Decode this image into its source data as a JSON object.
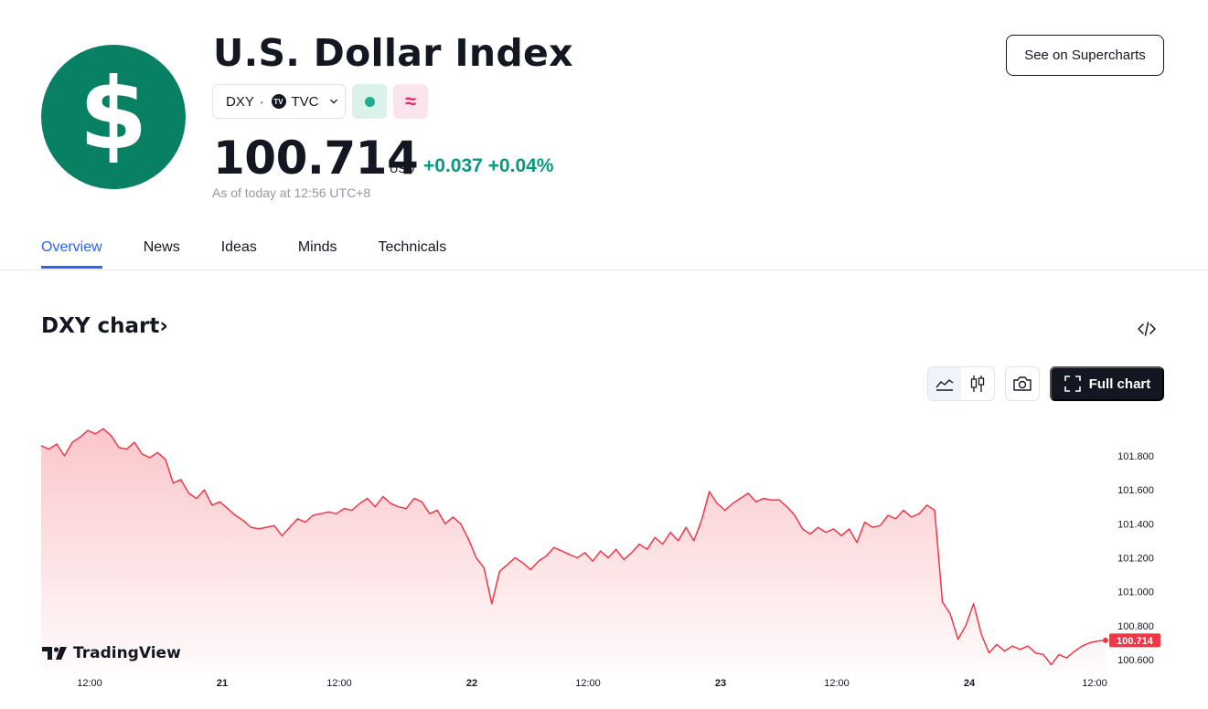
{
  "header": {
    "logo_symbol": "$",
    "title": "U.S. Dollar Index",
    "symbol": "DXY",
    "exchange_badge": "TV",
    "exchange": "TVC",
    "separator": "·",
    "price": "100.714",
    "currency": "USD",
    "change": "+0.037",
    "change_percent": "+0.04%",
    "as_of": "As of today at 12:56 UTC+8",
    "supercharts_label": "See on Supercharts",
    "market_status_icon": "market-open-dot-icon",
    "related_icon": "approx-equal-icon"
  },
  "tabs": [
    {
      "label": "Overview",
      "active": true
    },
    {
      "label": "News",
      "active": false
    },
    {
      "label": "Ideas",
      "active": false
    },
    {
      "label": "Minds",
      "active": false
    },
    {
      "label": "Technicals",
      "active": false
    }
  ],
  "chart_section": {
    "title": "DXY chart",
    "title_arrow": "›",
    "full_chart_label": "Full chart",
    "branding": "TradingView",
    "price_tag": "100.714"
  },
  "colors": {
    "brand_green": "#088064",
    "positive": "#089981",
    "line": "#f23645",
    "accent_blue": "#2962ff"
  },
  "chart_data": {
    "type": "area",
    "title": "",
    "xlabel": "",
    "ylabel": "",
    "x_ticks": [
      "12:00",
      "21",
      "12:00",
      "22",
      "12:00",
      "23",
      "12:00",
      "24",
      "12:00"
    ],
    "y_ticks": [
      "101.800",
      "101.600",
      "101.400",
      "101.200",
      "101.000",
      "100.800",
      "100.600"
    ],
    "ylim": [
      100.55,
      101.93
    ],
    "last_value": 100.714,
    "series": [
      {
        "values": [
          101.86,
          101.84,
          101.87,
          101.8,
          101.88,
          101.91,
          101.95,
          101.93,
          101.96,
          101.92,
          101.85,
          101.84,
          101.88,
          101.81,
          101.79,
          101.82,
          101.78,
          101.64,
          101.66,
          101.58,
          101.55,
          101.6,
          101.51,
          101.53,
          101.49,
          101.45,
          101.42,
          101.38,
          101.37,
          101.38,
          101.39,
          101.33,
          101.38,
          101.43,
          101.41,
          101.45,
          101.46,
          101.47,
          101.46,
          101.49,
          101.48,
          101.52,
          101.55,
          101.5,
          101.56,
          101.52,
          101.5,
          101.49,
          101.55,
          101.53,
          101.46,
          101.48,
          101.4,
          101.44,
          101.4,
          101.31,
          101.2,
          101.14,
          100.93,
          101.12,
          101.16,
          101.2,
          101.17,
          101.13,
          101.18,
          101.21,
          101.26,
          101.24,
          101.22,
          101.2,
          101.23,
          101.18,
          101.24,
          101.2,
          101.25,
          101.19,
          101.23,
          101.28,
          101.25,
          101.32,
          101.28,
          101.35,
          101.3,
          101.38,
          101.3,
          101.42,
          101.59,
          101.52,
          101.48,
          101.52,
          101.55,
          101.58,
          101.53,
          101.55,
          101.54,
          101.54,
          101.5,
          101.45,
          101.37,
          101.34,
          101.38,
          101.35,
          101.37,
          101.33,
          101.37,
          101.29,
          101.41,
          101.38,
          101.39,
          101.45,
          101.43,
          101.48,
          101.44,
          101.46,
          101.51,
          101.48,
          100.94,
          100.87,
          100.72,
          100.8,
          100.93,
          100.75,
          100.64,
          100.69,
          100.65,
          100.68,
          100.66,
          100.68,
          100.64,
          100.63,
          100.57,
          100.63,
          100.61,
          100.65,
          100.68,
          100.7,
          100.71,
          100.714
        ]
      }
    ]
  }
}
